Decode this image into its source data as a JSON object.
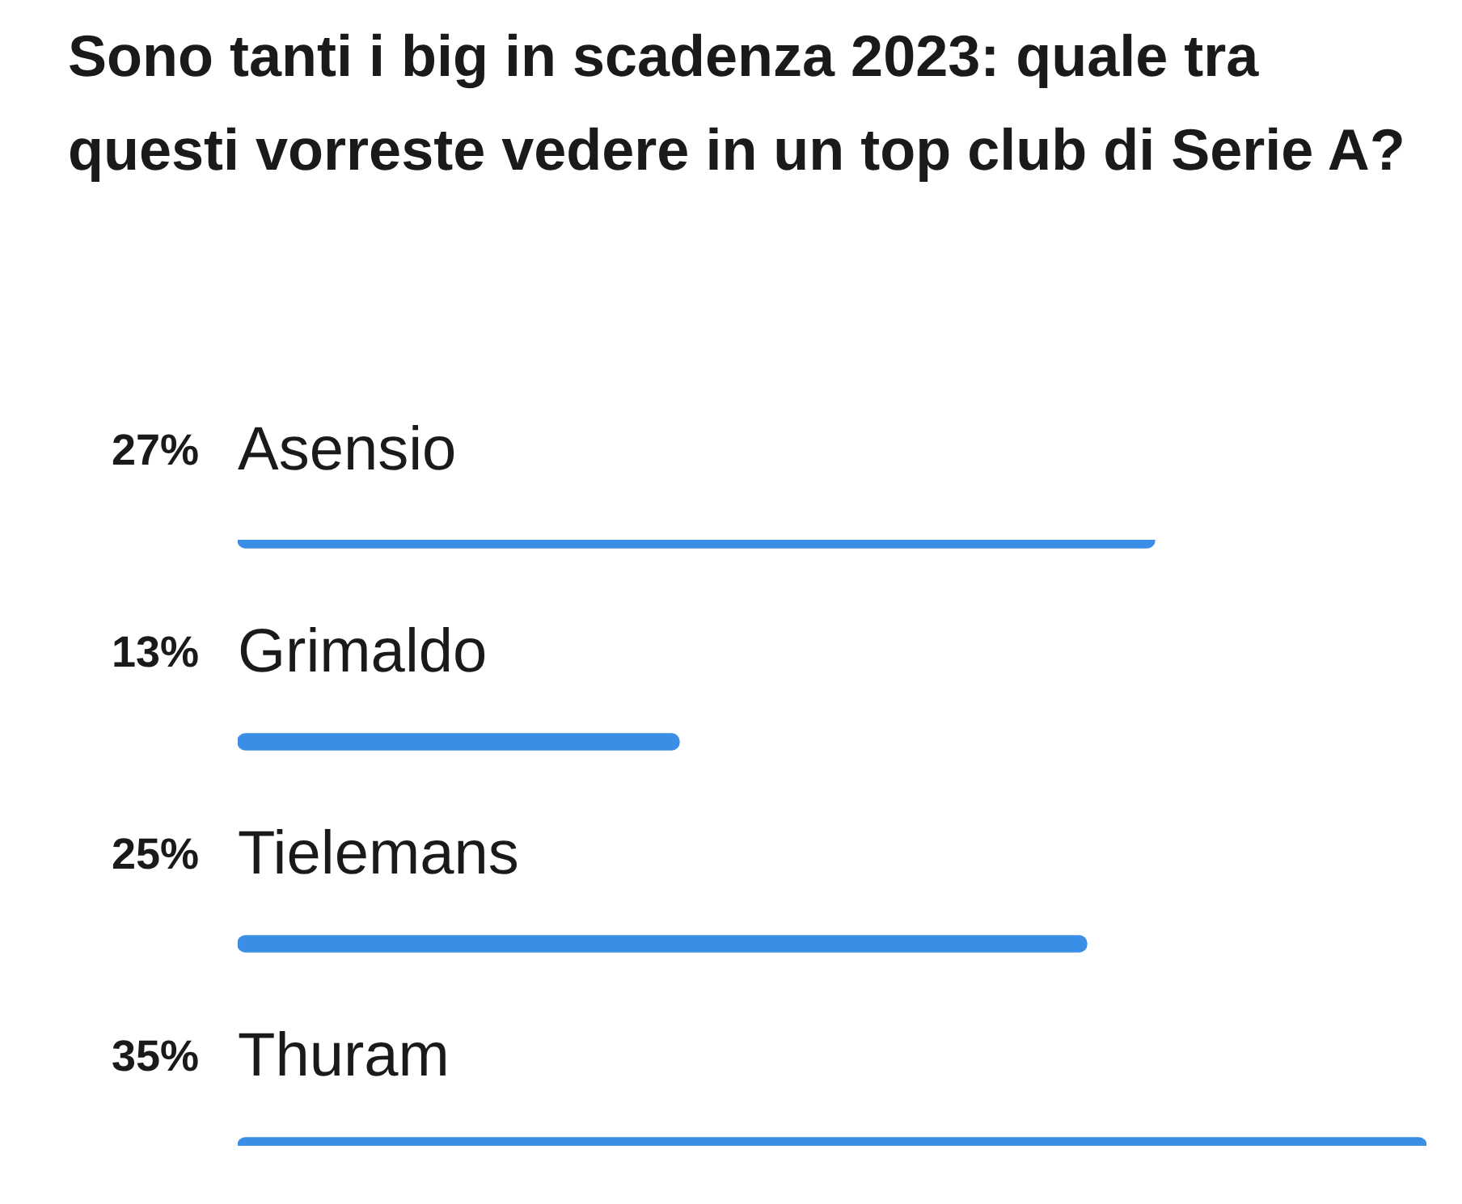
{
  "chart_data": {
    "type": "bar",
    "orientation": "horizontal",
    "title": "Sono tanti i big in scadenza 2023: quale tra questi vorreste vedere in un top club di Serie A?",
    "categories": [
      "Asensio",
      "Grimaldo",
      "Tielemans",
      "Thuram"
    ],
    "values": [
      27,
      13,
      25,
      35
    ],
    "value_labels": [
      "27%",
      "13%",
      "25%",
      "35%"
    ],
    "color": "#3a8ee6",
    "xlim": [
      0,
      35
    ],
    "tick_labels": "y",
    "legend": false
  }
}
